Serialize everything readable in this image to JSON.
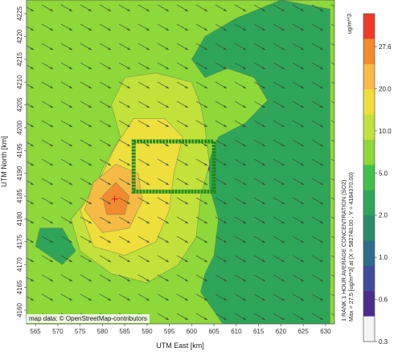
{
  "chart_data": {
    "type": "heatmap",
    "xlabel": "UTM East [km]",
    "ylabel": "UTM North [km]",
    "x_ticks": [
      565,
      570,
      575,
      580,
      585,
      590,
      595,
      600,
      605,
      610,
      615,
      620,
      625,
      630
    ],
    "y_ticks": [
      4160,
      4165,
      4170,
      4175,
      4180,
      4185,
      4190,
      4195,
      4200,
      4205,
      4210,
      4215,
      4220,
      4225
    ],
    "xlim": [
      563,
      632
    ],
    "ylim": [
      4157,
      4228
    ],
    "colorbar": {
      "unit": "ug/m**3",
      "ticks": [
        "27.6",
        "20.0",
        "10.0",
        "5.0",
        "2.0",
        "1.0",
        "0.6",
        "0.3"
      ],
      "colors": [
        "#ef3a2a",
        "#f28a30",
        "#f5bb45",
        "#eedf3c",
        "#c2e13a",
        "#8ed83a",
        "#3fc14b",
        "#2fa55a",
        "#2a8c69",
        "#2f6d8a",
        "#3f4d9a",
        "#4b2d8d",
        "#f5f5f5"
      ]
    },
    "info_lines": [
      "1 RANK 1 HOUR AVERAGE CONCENTRATION (SO2)",
      "Max = 27.5 [ug/m**3] at (X = 582740.00 , Y = 4184370.00)"
    ],
    "max_marker": {
      "x": 582.74,
      "y": 4184.37
    },
    "facility_box": {
      "x": [
        587.0,
        605.0
      ],
      "y": [
        4186.0,
        4197.0
      ]
    },
    "contours": [
      {
        "label": "0.3",
        "color": "#f5f5f5",
        "points": [
          [
            605,
            4192
          ],
          [
            614,
            4193
          ],
          [
            620,
            4195
          ],
          [
            625,
            4195
          ],
          [
            629,
            4192
          ],
          [
            631,
            4188
          ],
          [
            631,
            4182
          ],
          [
            627,
            4179
          ],
          [
            621,
            4180
          ],
          [
            614,
            4184
          ],
          [
            608,
            4188
          ]
        ]
      },
      {
        "label": "0.6",
        "color": "#4b2d8d",
        "points": [
          [
            603,
            4192
          ],
          [
            614,
            4195
          ],
          [
            621,
            4197
          ],
          [
            627,
            4197
          ],
          [
            631,
            4195
          ],
          [
            631,
            4173
          ],
          [
            628,
            4172
          ],
          [
            624,
            4176
          ],
          [
            619,
            4179
          ],
          [
            612,
            4182
          ],
          [
            606,
            4187
          ]
        ]
      },
      {
        "label": "1.0",
        "color": "#2f6d8a",
        "points": [
          [
            611,
            4182
          ],
          [
            619,
            4178
          ],
          [
            626,
            4174
          ],
          [
            631,
            4172
          ],
          [
            631,
            4165
          ],
          [
            624,
            4168
          ],
          [
            617,
            4173
          ],
          [
            612,
            4178
          ]
        ]
      },
      {
        "label": "2.0",
        "color": "#2fa55a",
        "points": [
          [
            602,
            4164
          ],
          [
            607,
            4157
          ],
          [
            631,
            4157
          ],
          [
            631,
            4226
          ],
          [
            620,
            4228
          ],
          [
            610,
            4224
          ],
          [
            603,
            4220
          ],
          [
            600,
            4215
          ],
          [
            603,
            4211
          ],
          [
            608,
            4213
          ],
          [
            614,
            4211
          ],
          [
            617,
            4206
          ],
          [
            612,
            4201
          ],
          [
            606,
            4198
          ],
          [
            604,
            4193
          ],
          [
            604,
            4187
          ],
          [
            606,
            4180
          ],
          [
            605,
            4172
          ],
          [
            603,
            4168
          ]
        ]
      },
      {
        "label": "2.0",
        "color": "#2fa55a",
        "points": [
          [
            565,
            4174
          ],
          [
            571,
            4170
          ],
          [
            574,
            4173
          ],
          [
            571,
            4178
          ],
          [
            566,
            4178
          ]
        ]
      },
      {
        "label": "5.0",
        "color": "#c2e13a",
        "points": [
          [
            578,
            4186
          ],
          [
            573,
            4180
          ],
          [
            575,
            4173
          ],
          [
            582,
            4168
          ],
          [
            590,
            4166
          ],
          [
            597,
            4170
          ],
          [
            601,
            4176
          ],
          [
            602,
            4185
          ],
          [
            604,
            4192
          ],
          [
            603,
            4200
          ],
          [
            602,
            4205
          ],
          [
            600,
            4210
          ],
          [
            592,
            4212
          ],
          [
            585,
            4211
          ],
          [
            582,
            4205
          ],
          [
            584,
            4198
          ],
          [
            580,
            4191
          ]
        ]
      },
      {
        "label": "10.0",
        "color": "#eedf3c",
        "points": [
          [
            580,
            4190
          ],
          [
            575,
            4182
          ],
          [
            578,
            4174
          ],
          [
            585,
            4172
          ],
          [
            592,
            4175
          ],
          [
            595,
            4182
          ],
          [
            596,
            4190
          ],
          [
            598,
            4198
          ],
          [
            594,
            4202
          ],
          [
            587,
            4202
          ],
          [
            583,
            4196
          ]
        ]
      },
      {
        "label": "20.0",
        "color": "#f5bb45",
        "points": [
          [
            578,
            4188
          ],
          [
            576,
            4182
          ],
          [
            580,
            4177
          ],
          [
            586,
            4178
          ],
          [
            589,
            4184
          ],
          [
            588,
            4190
          ],
          [
            583,
            4192
          ]
        ]
      },
      {
        "label": "27.6",
        "color": "#f28a30",
        "points": [
          [
            580,
            4185
          ],
          [
            581,
            4181
          ],
          [
            585,
            4181
          ],
          [
            586,
            4185
          ],
          [
            583,
            4188
          ]
        ]
      }
    ]
  },
  "map": {
    "attribution": "map data: © OpenStreetMap-contributors"
  }
}
